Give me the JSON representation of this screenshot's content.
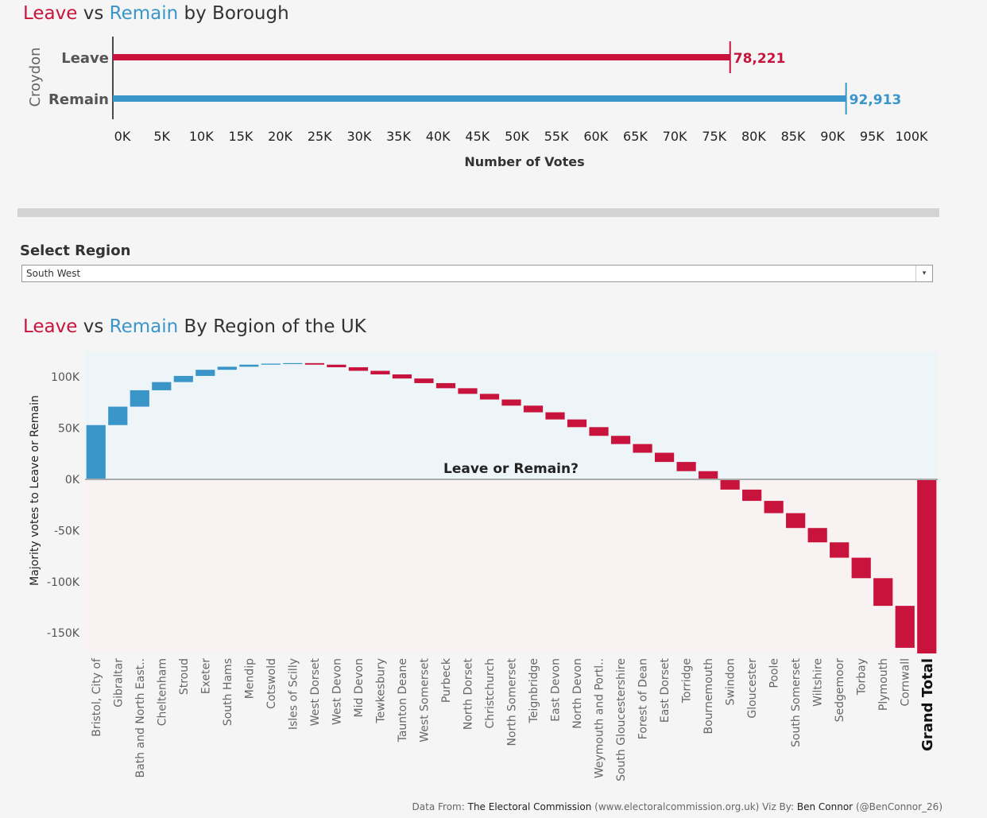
{
  "top": {
    "title_leave": "Leave",
    "title_vs": " vs ",
    "title_remain": "Remain",
    "title_rest": " by Borough"
  },
  "colors": {
    "leave": "#c8143c",
    "remain": "#3a96c8"
  },
  "region_filter": {
    "label": "Select Region",
    "selected": "South West"
  },
  "bottom": {
    "title_leave": "Leave",
    "title_vs": " vs ",
    "title_remain": "Remain",
    "title_rest": " By Region of the UK"
  },
  "footer": {
    "prefix": "Data From: ",
    "source": "The Electoral Commission",
    "source_url": " (www.electoralcommission.org.uk) Viz By: ",
    "author": "Ben Connor",
    "handle": " (@BenConnor_26)"
  },
  "chart_data": [
    {
      "type": "bar",
      "orientation": "horizontal",
      "group_label": "Croydon",
      "categories": [
        "Leave",
        "Remain"
      ],
      "values": [
        78221,
        92913
      ],
      "value_labels": [
        "78,221",
        "92,913"
      ],
      "xlabel": "Number of Votes",
      "xlim": [
        0,
        100000
      ],
      "x_ticks": [
        "0K",
        "5K",
        "10K",
        "15K",
        "20K",
        "25K",
        "30K",
        "35K",
        "40K",
        "45K",
        "50K",
        "55K",
        "60K",
        "65K",
        "70K",
        "75K",
        "80K",
        "85K",
        "90K",
        "95K",
        "100K"
      ],
      "grid": false
    },
    {
      "type": "waterfall",
      "ylabel": "Majority votes to Leave or Remain",
      "zero_label": "Leave or Remain?",
      "ylim": [
        -170000,
        125000
      ],
      "y_ticks": [
        "100K",
        "50K",
        "0K",
        "-50K",
        "-100K",
        "-150K"
      ],
      "y_tick_values": [
        100000,
        50000,
        0,
        -50000,
        -100000,
        -150000
      ],
      "categories": [
        "Bristol, City of",
        "Gibraltar",
        "Bath and North East..",
        "Cheltenham",
        "Stroud",
        "Exeter",
        "South Hams",
        "Mendip",
        "Cotswold",
        "Isles of Scilly",
        "West Dorset",
        "West Devon",
        "Mid Devon",
        "Tewkesbury",
        "Taunton Deane",
        "West Somerset",
        "Purbeck",
        "North Dorset",
        "Christchurch",
        "North Somerset",
        "Teignbridge",
        "East Devon",
        "North Devon",
        "Weymouth and Portl..",
        "South Gloucestershire",
        "Forest of Dean",
        "East Dorset",
        "Torridge",
        "Bournemouth",
        "Swindon",
        "Gloucester",
        "Poole",
        "South Somerset",
        "Wiltshire",
        "Sedgemoor",
        "Torbay",
        "Plymouth",
        "Cornwall"
      ],
      "remain_majority": [
        53000,
        18000,
        16000,
        8000,
        6000,
        6000,
        3000,
        2000,
        1000,
        500,
        -1500,
        -2500,
        -3500,
        -3500,
        -4000,
        -4500,
        -5000,
        -5500,
        -5500,
        -6000,
        -6500,
        -7000,
        -7500,
        -8500,
        -8000,
        -8500,
        -9000,
        -9000,
        -8500,
        -9500,
        -11000,
        -12000,
        -14500,
        -14000,
        -15000,
        -20000,
        -27000,
        -41000
      ],
      "total_label": "Grand Total",
      "total": -170000,
      "grid": false
    }
  ]
}
